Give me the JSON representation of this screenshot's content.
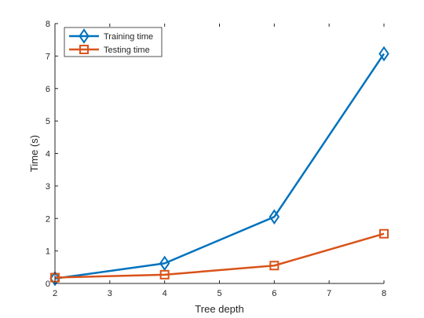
{
  "chart_data": {
    "type": "line",
    "title": "",
    "xlabel": "Tree depth",
    "ylabel": "Time (s)",
    "xlim": [
      2,
      8
    ],
    "ylim": [
      0,
      8
    ],
    "xticks": [
      "2",
      "3",
      "4",
      "5",
      "6",
      "7",
      "8"
    ],
    "yticks": [
      "0",
      "1",
      "2",
      "3",
      "4",
      "5",
      "6",
      "7",
      "8"
    ],
    "grid": false,
    "legend_position": "top-left",
    "x": [
      2,
      4,
      6,
      8
    ],
    "series": [
      {
        "name": "Training time",
        "values": [
          0.15,
          0.62,
          2.05,
          7.07
        ],
        "color": "#0072BD",
        "marker": "diamond"
      },
      {
        "name": "Testing time",
        "values": [
          0.18,
          0.27,
          0.55,
          1.53
        ],
        "color": "#D95319",
        "marker": "square"
      }
    ]
  }
}
